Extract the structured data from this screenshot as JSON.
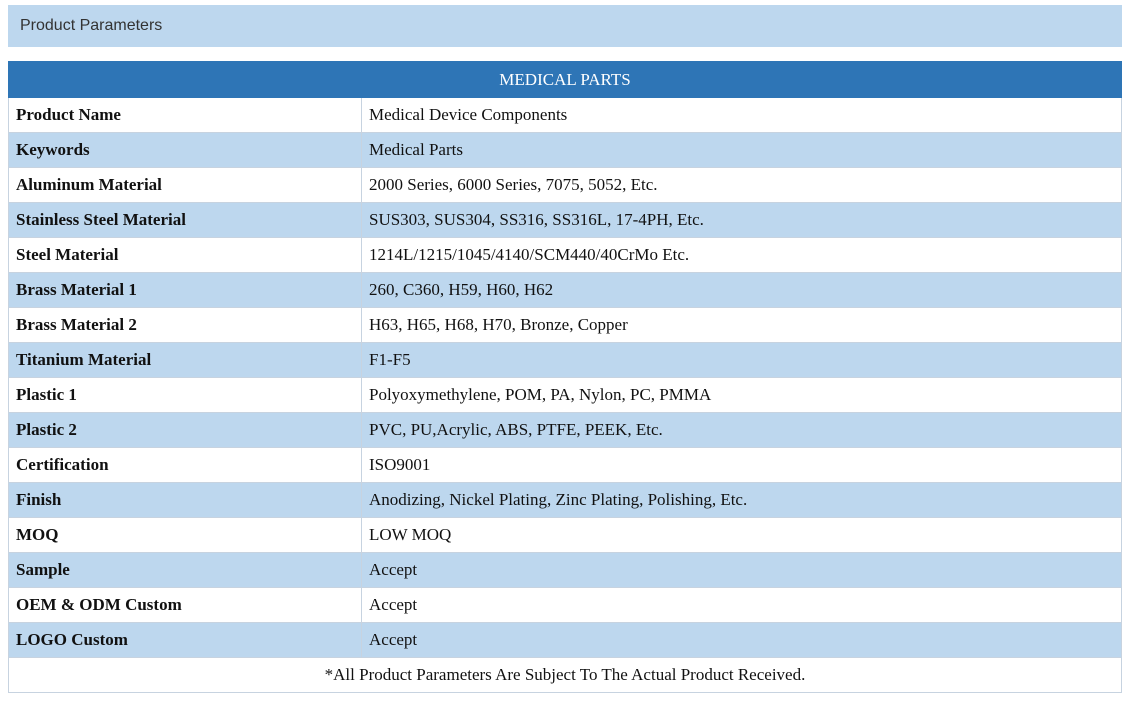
{
  "section": {
    "title": "Product Parameters"
  },
  "table": {
    "heading": "MEDICAL PARTS",
    "rows": [
      {
        "label": "Product Name",
        "value": "Medical Device Components"
      },
      {
        "label": "Keywords",
        "value": "Medical Parts"
      },
      {
        "label": "Aluminum Material",
        "value": "2000 Series, 6000 Series, 7075, 5052, Etc."
      },
      {
        "label": "Stainless Steel Material",
        "value": "SUS303, SUS304, SS316, SS316L, 17-4PH, Etc."
      },
      {
        "label": "Steel Material",
        "value": "1214L/1215/1045/4140/SCM440/40CrMo Etc."
      },
      {
        "label": "Brass Material 1",
        "value": "260, C360, H59, H60, H62"
      },
      {
        "label": "Brass Material 2",
        "value": "H63, H65, H68, H70, Bronze, Copper"
      },
      {
        "label": "Titanium Material",
        "value": "F1-F5"
      },
      {
        "label": "Plastic 1",
        "value": "Polyoxymethylene, POM, PA, Nylon, PC, PMMA"
      },
      {
        "label": "Plastic 2",
        "value": "PVC, PU,Acrylic, ABS, PTFE, PEEK, Etc."
      },
      {
        "label": "Certification",
        "value": "ISO9001"
      },
      {
        "label": "Finish",
        "value": "Anodizing, Nickel Plating, Zinc Plating, Polishing, Etc."
      },
      {
        "label": "MOQ",
        "value": "LOW MOQ"
      },
      {
        "label": "Sample",
        "value": "Accept"
      },
      {
        "label": "OEM & ODM Custom",
        "value": "Accept"
      },
      {
        "label": "LOGO Custom",
        "value": "Accept"
      }
    ],
    "note": "*All Product Parameters Are Subject To The Actual Product Received."
  },
  "colors": {
    "header_band": "#bdd7ee",
    "table_heading": "#2e75b6",
    "stripe": "#bdd7ee"
  }
}
